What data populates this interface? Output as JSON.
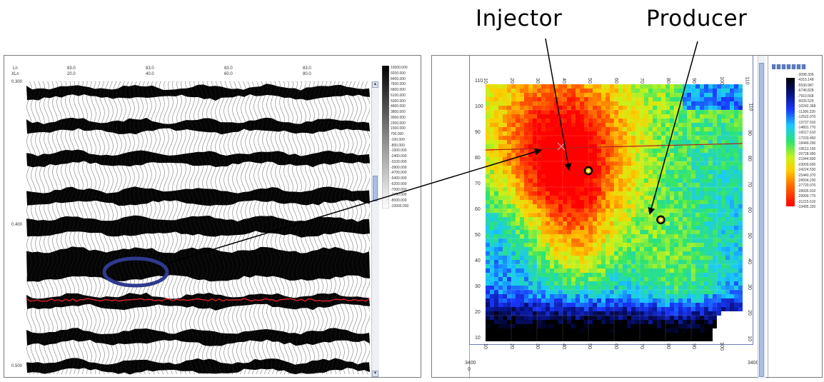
{
  "callouts": {
    "injector": "Injector",
    "producer": "Producer"
  },
  "seismic_view": {
    "corner_labels": [
      "Ln",
      "XLn"
    ],
    "column_headers": [
      {
        "top": "83.0",
        "bottom": "20.0"
      },
      {
        "top": "83.0",
        "bottom": "40.0"
      },
      {
        "top": "83.0",
        "bottom": "60.0"
      },
      {
        "top": "83.0",
        "bottom": "80.0"
      }
    ],
    "time_labels": [
      "0.300",
      "0.400",
      "0.500"
    ],
    "colorbar_labels": [
      "10000.000",
      "9200.000",
      "8400.000",
      "7600.000",
      "6800.000",
      "6100.000",
      "5300.000",
      "4600.000",
      "3800.000",
      "3000.000",
      "2300.000",
      "1500.000",
      "700.000",
      "-100.000",
      "-800.000",
      "-1600.000",
      "-2400.000",
      "-3100.000",
      "-3900.000",
      "-4700.000",
      "-5400.000",
      "-6200.000",
      "-7000.000",
      "-7700.000",
      "-8500.000",
      "-10000.000"
    ],
    "horizon_color": "#d42020",
    "highlight_color": "#2e3a8c"
  },
  "map_view": {
    "left_axis": [
      "110",
      "100",
      "90",
      "80",
      "70",
      "60",
      "50",
      "40",
      "30",
      "20",
      "10"
    ],
    "right_axis": [
      "110",
      "90",
      "80",
      "70",
      "60",
      "50",
      "40",
      "30",
      "20",
      "10"
    ],
    "top_axis": [
      "10",
      "20",
      "30",
      "40",
      "50",
      "60",
      "70",
      "80",
      "90",
      "100",
      "110"
    ],
    "bottom_axis": [
      "10",
      "20",
      "30",
      "40",
      "50",
      "60",
      "70",
      "80",
      "90",
      "100"
    ],
    "corner_left": "3400",
    "corner_right": "3400",
    "origin": "0",
    "colorbar_labels": [
      "-3098.306",
      "-4315.148",
      "-5530.987",
      "-6746.828",
      "-7910.668",
      "-9026.529",
      "-10242.368",
      "-11306.220",
      "-12522.070",
      "-13737.910",
      "-14801.770",
      "-16017.610",
      "-17233.450",
      "-18449.290",
      "-19513.150",
      "-20728.990",
      "-21944.830",
      "-23009.690",
      "-24224.530",
      "-25440.370",
      "-26504.230",
      "-27720.070",
      "-28935.910",
      "-29999.770",
      "-31215.610",
      "-33495.320"
    ],
    "wells": [
      {
        "name": "injector-well",
        "x": 44,
        "y": 73
      },
      {
        "name": "producer-well",
        "x": 75,
        "y": 52
      }
    ],
    "section_line_color": "#b02020"
  }
}
